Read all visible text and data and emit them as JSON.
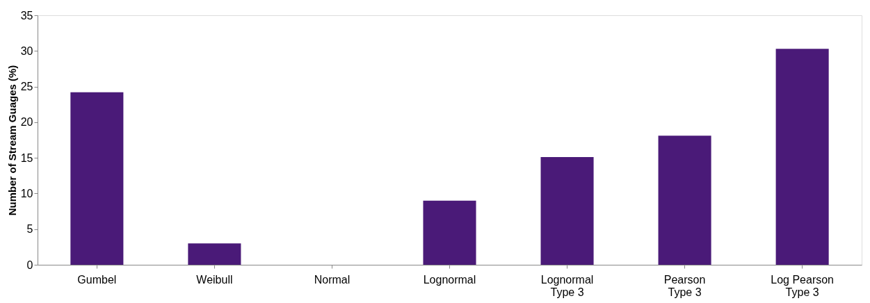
{
  "chart_data": {
    "type": "bar",
    "ylabel": "Number of Stream Guages (%)",
    "categories": [
      "Gumbel",
      "Weibull",
      "Normal",
      "Lognormal",
      "Lognormal\nType 3",
      "Pearson\nType 3",
      "Log Pearson\nType 3"
    ],
    "values": [
      24.2,
      3.0,
      0,
      9.0,
      15.1,
      18.1,
      30.3
    ],
    "color": "#4a1a78",
    "ylim": [
      0,
      35
    ],
    "yticks": [
      0,
      5,
      10,
      15,
      20,
      25,
      30,
      35
    ],
    "grid": false
  }
}
